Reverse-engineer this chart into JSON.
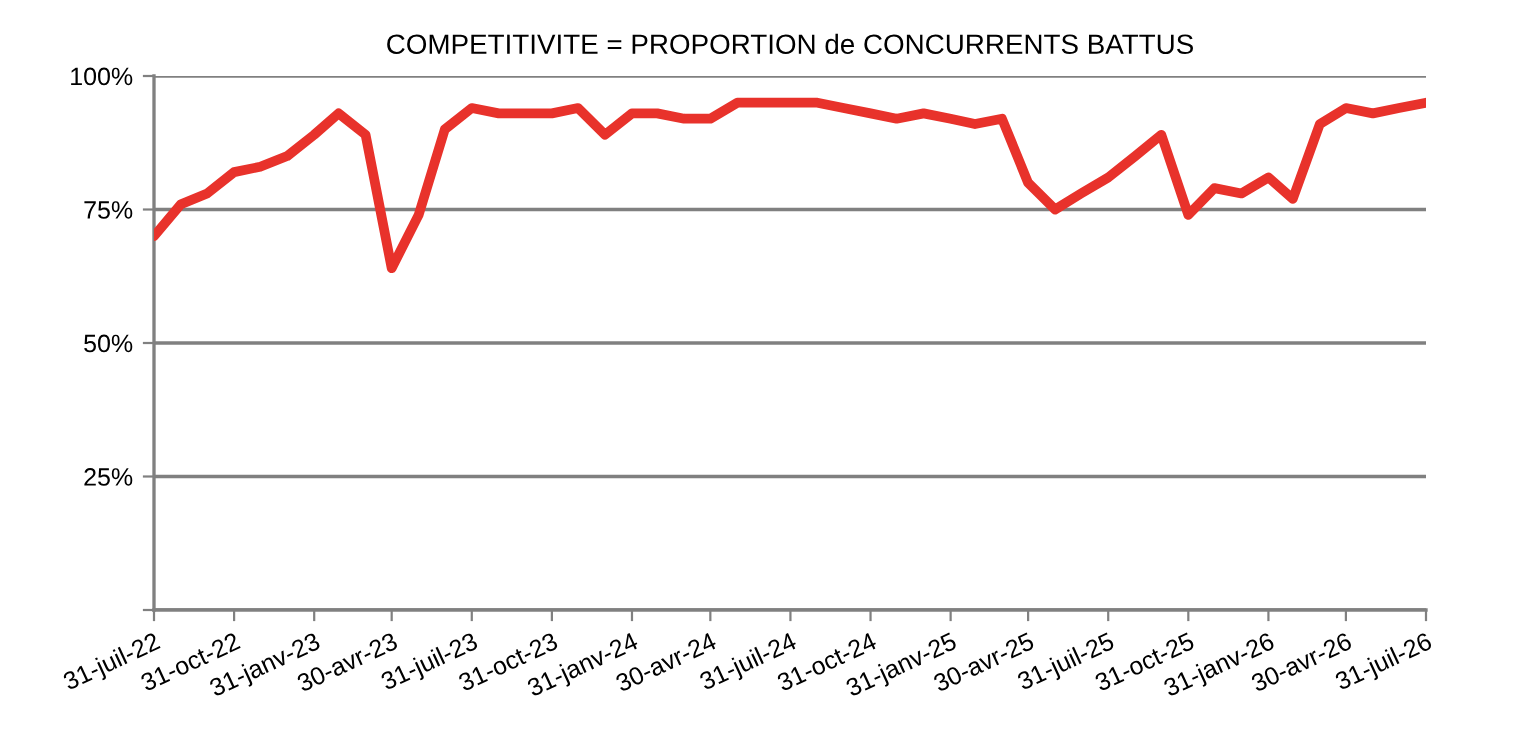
{
  "chart_data": {
    "type": "line",
    "title": "COMPETITIVITE = PROPORTION de CONCURRENTS BATTUS",
    "x": [
      "2022-07-31",
      "2022-08-31",
      "2022-09-30",
      "2022-10-31",
      "2022-11-30",
      "2022-12-31",
      "2023-01-31",
      "2023-02-28",
      "2023-03-31",
      "2023-04-30",
      "2023-05-31",
      "2023-06-30",
      "2023-07-31",
      "2023-08-31",
      "2023-09-30",
      "2023-10-31",
      "2023-11-30",
      "2023-12-31",
      "2024-01-31",
      "2024-02-29",
      "2024-03-31",
      "2024-04-30",
      "2024-05-31",
      "2024-06-30",
      "2024-07-31",
      "2024-08-31",
      "2024-09-30",
      "2024-10-31",
      "2024-11-30",
      "2024-12-31",
      "2025-01-31",
      "2025-02-28",
      "2025-03-31",
      "2025-04-30",
      "2025-05-31",
      "2025-06-30",
      "2025-07-31",
      "2025-08-31",
      "2025-09-30",
      "2025-10-31",
      "2025-11-30",
      "2025-12-31",
      "2026-01-31",
      "2026-02-28",
      "2026-03-31",
      "2026-04-30",
      "2026-05-31",
      "2026-06-30",
      "2026-07-31"
    ],
    "series": [
      {
        "color": "#e8322b",
        "values": [
          70,
          76,
          78,
          82,
          83,
          85,
          89,
          93,
          89,
          64,
          74,
          90,
          94,
          93,
          93,
          93,
          94,
          89,
          93,
          93,
          92,
          92,
          95,
          95,
          95,
          95,
          94,
          93,
          92,
          93,
          92,
          91,
          92,
          80,
          75,
          78,
          81,
          85,
          89,
          74,
          79,
          78,
          81,
          77,
          91,
          94,
          93,
          94,
          95
        ]
      }
    ],
    "ylim": [
      0,
      100
    ],
    "yticks": [
      {
        "value": 0,
        "label": null
      },
      {
        "value": 25,
        "label": "25%"
      },
      {
        "value": 50,
        "label": "50%"
      },
      {
        "value": 75,
        "label": "75%"
      },
      {
        "value": 100,
        "label": "100%"
      }
    ],
    "xlim": [
      "2022-07-31",
      "2026-07-31"
    ],
    "xticks": [
      {
        "value": "2022-07-31",
        "label": "31-juil-22"
      },
      {
        "value": "2022-10-31",
        "label": "31-oct-22"
      },
      {
        "value": "2023-01-31",
        "label": "31-janv-23"
      },
      {
        "value": "2023-04-30",
        "label": "30-avr-23"
      },
      {
        "value": "2023-07-31",
        "label": "31-juil-23"
      },
      {
        "value": "2023-10-31",
        "label": "31-oct-23"
      },
      {
        "value": "2024-01-31",
        "label": "31-janv-24"
      },
      {
        "value": "2024-04-30",
        "label": "30-avr-24"
      },
      {
        "value": "2024-07-31",
        "label": "31-juil-24"
      },
      {
        "value": "2024-10-31",
        "label": "31-oct-24"
      },
      {
        "value": "2025-01-31",
        "label": "31-janv-25"
      },
      {
        "value": "2025-04-30",
        "label": "30-avr-25"
      },
      {
        "value": "2025-07-31",
        "label": "31-juil-25"
      },
      {
        "value": "2025-10-31",
        "label": "31-oct-25"
      },
      {
        "value": "2026-01-31",
        "label": "31-janv-26"
      },
      {
        "value": "2026-04-30",
        "label": "30-avr-26"
      },
      {
        "value": "2026-07-31",
        "label": "31-juil-26"
      }
    ],
    "grid": "y",
    "marker": "none",
    "line_style": "solid"
  }
}
